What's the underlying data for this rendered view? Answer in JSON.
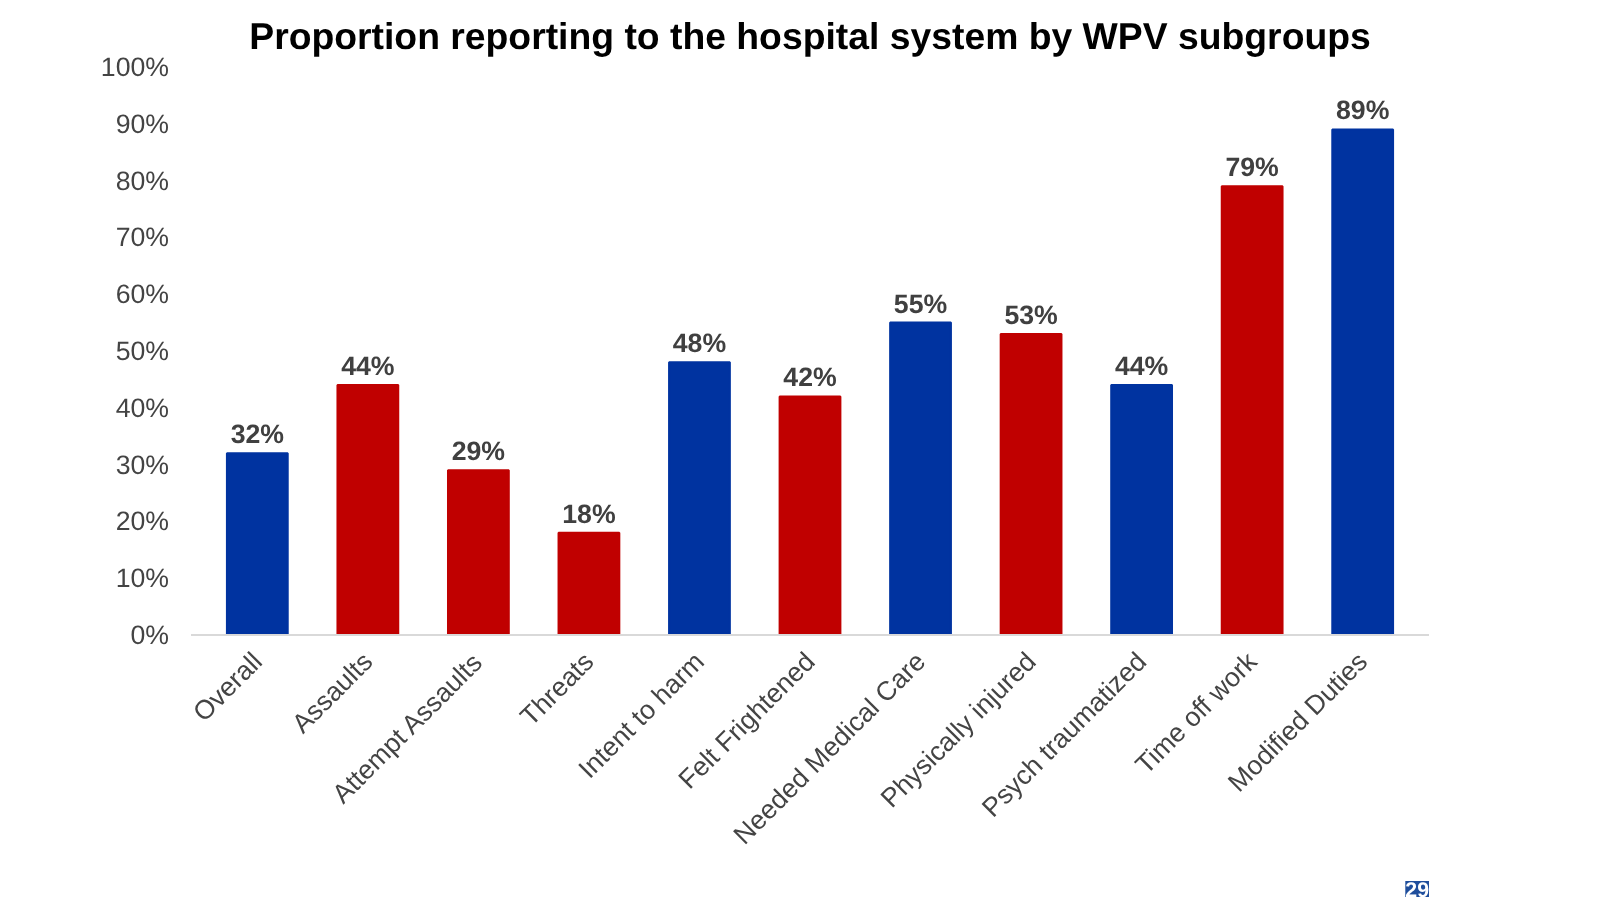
{
  "chart_data": {
    "type": "bar",
    "title": "Proportion reporting to the hospital system by WPV subgroups",
    "categories": [
      "Overall",
      "Assaults",
      "Attempt Assaults",
      "Threats",
      "Intent to harm",
      "Felt Frightened",
      "Needed Medical Care",
      "Physically injured",
      "Psych traumatized",
      "Time off work",
      "Modified Duties"
    ],
    "values": [
      32,
      44,
      29,
      18,
      48,
      42,
      55,
      53,
      44,
      79,
      89
    ],
    "value_labels": [
      "32%",
      "44%",
      "29%",
      "18%",
      "48%",
      "42%",
      "55%",
      "53%",
      "44%",
      "79%",
      "89%"
    ],
    "colors": [
      "#0033a0",
      "#c00000",
      "#c00000",
      "#c00000",
      "#0033a0",
      "#c00000",
      "#0033a0",
      "#c00000",
      "#0033a0",
      "#c00000",
      "#0033a0"
    ],
    "ylim": [
      0,
      100
    ],
    "yticks": [
      {
        "value": 0,
        "label": "0%"
      },
      {
        "value": 10,
        "label": "10%"
      },
      {
        "value": 20,
        "label": "20%"
      },
      {
        "value": 30,
        "label": "30%"
      },
      {
        "value": 40,
        "label": "40%"
      },
      {
        "value": 50,
        "label": "50%"
      },
      {
        "value": 60,
        "label": "60%"
      },
      {
        "value": 70,
        "label": "70%"
      },
      {
        "value": 80,
        "label": "80%"
      },
      {
        "value": 90,
        "label": "90%"
      },
      {
        "value": 100,
        "label": "100%"
      }
    ],
    "grid": false,
    "annotations": [
      "29"
    ]
  }
}
